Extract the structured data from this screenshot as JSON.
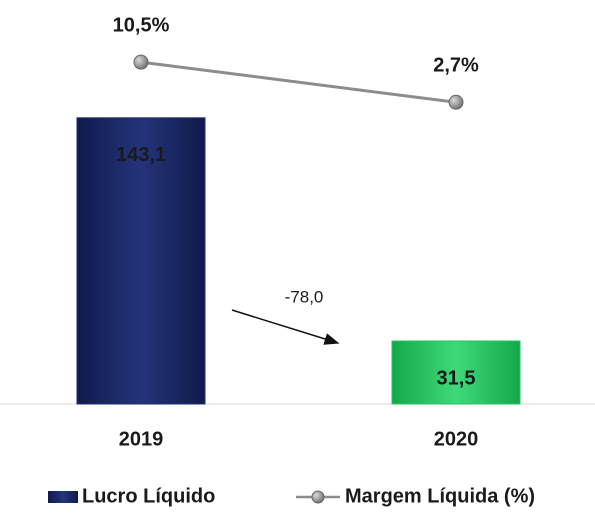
{
  "chart_data": {
    "type": "bar",
    "categories": [
      "2019",
      "2020"
    ],
    "series": [
      {
        "name": "Lucro Líquido",
        "type": "bar",
        "color": "#1f2d6e",
        "colors": [
          "#1f2d6e",
          "#22c55e"
        ],
        "values": [
          143.1,
          31.5
        ],
        "value_labels": [
          "143,1",
          "31,5"
        ]
      },
      {
        "name": "Margem Líquida (%)",
        "type": "line",
        "axis": "y2",
        "color": "#8c8c8c",
        "values": [
          10.5,
          2.7
        ],
        "value_labels": [
          "10,5%",
          "2,7%"
        ]
      }
    ],
    "ylim": [
      0,
      192
    ],
    "y2lim": [
      -56,
      18.7
    ],
    "annotations": [
      {
        "text": "-78,0"
      }
    ]
  }
}
